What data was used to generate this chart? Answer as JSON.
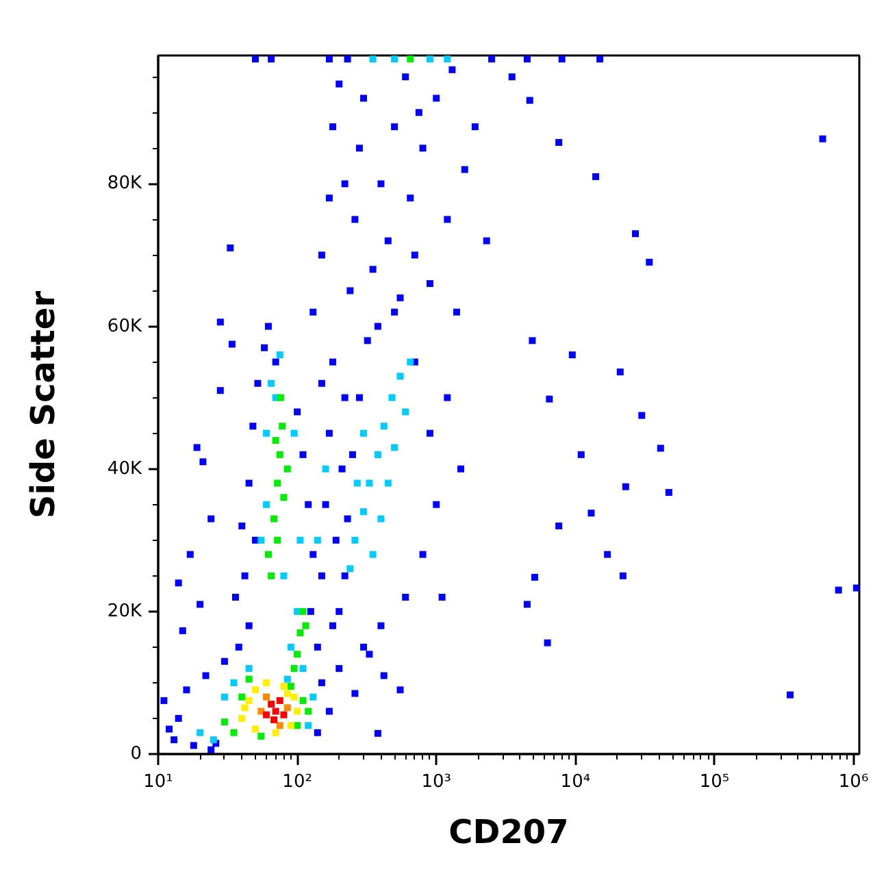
{
  "chart_data": {
    "type": "scatter",
    "xlabel": "CD207",
    "ylabel": "Side Scatter",
    "log": "x",
    "grid": false,
    "marker": "square",
    "xlim": [
      10,
      1100000
    ],
    "ylim": [
      0,
      98000
    ],
    "xticks": [
      {
        "value": 10,
        "label": "10¹"
      },
      {
        "value": 20,
        "label": null
      },
      {
        "value": 30,
        "label": null
      },
      {
        "value": 40,
        "label": null
      },
      {
        "value": 50,
        "label": null
      },
      {
        "value": 60,
        "label": null
      },
      {
        "value": 70,
        "label": null
      },
      {
        "value": 80,
        "label": null
      },
      {
        "value": 90,
        "label": null
      },
      {
        "value": 100,
        "label": "10²"
      },
      {
        "value": 200,
        "label": null
      },
      {
        "value": 300,
        "label": null
      },
      {
        "value": 400,
        "label": null
      },
      {
        "value": 500,
        "label": null
      },
      {
        "value": 600,
        "label": null
      },
      {
        "value": 700,
        "label": null
      },
      {
        "value": 800,
        "label": null
      },
      {
        "value": 900,
        "label": null
      },
      {
        "value": 1000,
        "label": "10³"
      },
      {
        "value": 2000,
        "label": null
      },
      {
        "value": 3000,
        "label": null
      },
      {
        "value": 4000,
        "label": null
      },
      {
        "value": 5000,
        "label": null
      },
      {
        "value": 6000,
        "label": null
      },
      {
        "value": 7000,
        "label": null
      },
      {
        "value": 8000,
        "label": null
      },
      {
        "value": 9000,
        "label": null
      },
      {
        "value": 10000,
        "label": "10⁴"
      },
      {
        "value": 20000,
        "label": null
      },
      {
        "value": 30000,
        "label": null
      },
      {
        "value": 40000,
        "label": null
      },
      {
        "value": 50000,
        "label": null
      },
      {
        "value": 60000,
        "label": null
      },
      {
        "value": 70000,
        "label": null
      },
      {
        "value": 80000,
        "label": null
      },
      {
        "value": 90000,
        "label": null
      },
      {
        "value": 100000,
        "label": "10⁵"
      },
      {
        "value": 200000,
        "label": null
      },
      {
        "value": 300000,
        "label": null
      },
      {
        "value": 400000,
        "label": null
      },
      {
        "value": 500000,
        "label": null
      },
      {
        "value": 600000,
        "label": null
      },
      {
        "value": 700000,
        "label": null
      },
      {
        "value": 800000,
        "label": null
      },
      {
        "value": 900000,
        "label": null
      },
      {
        "value": 1000000,
        "label": "10⁶"
      }
    ],
    "yticks": [
      0,
      {
        "value": 5000,
        "label": null
      },
      {
        "value": 10000,
        "label": null
      },
      {
        "value": 15000,
        "label": null
      },
      {
        "value": 20000,
        "label": "20K"
      },
      {
        "value": 25000,
        "label": null
      },
      {
        "value": 30000,
        "label": null
      },
      {
        "value": 35000,
        "label": null
      },
      {
        "value": 40000,
        "label": "40K"
      },
      {
        "value": 45000,
        "label": null
      },
      {
        "value": 50000,
        "label": null
      },
      {
        "value": 55000,
        "label": null
      },
      {
        "value": 60000,
        "label": "60K"
      },
      {
        "value": 65000,
        "label": null
      },
      {
        "value": 70000,
        "label": null
      },
      {
        "value": 75000,
        "label": null
      },
      {
        "value": 80000,
        "label": "80K"
      },
      {
        "value": 85000,
        "label": null
      },
      {
        "value": 90000,
        "label": null
      },
      {
        "value": 95000,
        "label": null
      }
    ],
    "series": [
      {
        "color": "#0000ff",
        "x": [
          11,
          12,
          13,
          14,
          16,
          18,
          22,
          24,
          26,
          30,
          140,
          150,
          170,
          200,
          260,
          330,
          380,
          420,
          550,
          33,
          28,
          34,
          28,
          19,
          21,
          14,
          15,
          17,
          24,
          20,
          38,
          42,
          40,
          45,
          48,
          52,
          58,
          62,
          70,
          100,
          110,
          120,
          130,
          125,
          140,
          45,
          36,
          50,
          150,
          160,
          170,
          180,
          190,
          200,
          210,
          220,
          150,
          180,
          220,
          230,
          250,
          280,
          320,
          500,
          700,
          900,
          1000,
          800,
          600,
          400,
          300,
          1200,
          1500,
          1100,
          130,
          150,
          170,
          180,
          200,
          240,
          260,
          280,
          300,
          350,
          400,
          450,
          500,
          550,
          600,
          650,
          700,
          800,
          900,
          1000,
          1200,
          1400,
          1600,
          1900,
          2300,
          220,
          380,
          750,
          1300,
          600000,
          7600,
          14000,
          27000,
          34000,
          4700,
          3500,
          4900,
          9500,
          21000,
          30000,
          41000,
          47000,
          23000,
          17000,
          22000,
          6300,
          350000,
          780000,
          1050000,
          13000,
          7600,
          4500,
          5100,
          11000,
          6500,
          50,
          65,
          170,
          230,
          2500,
          4500,
          8000,
          15000
        ],
        "values": [
          7500,
          3500,
          2000,
          5000,
          9000,
          1200,
          11000,
          600,
          1500,
          13000,
          3000,
          10000,
          6000,
          12000,
          8500,
          14000,
          2900,
          11000,
          9000,
          71000,
          60600,
          57500,
          51000,
          43000,
          41000,
          24000,
          17300,
          28000,
          33000,
          21000,
          15000,
          25000,
          32000,
          38000,
          46000,
          52000,
          57000,
          60000,
          55000,
          48000,
          42000,
          35000,
          28000,
          20000,
          15000,
          18000,
          22000,
          30000,
          25000,
          35000,
          45000,
          55000,
          30000,
          20000,
          40000,
          50000,
          52000,
          18000,
          25000,
          33000,
          42000,
          50000,
          58000,
          62000,
          55000,
          45000,
          35000,
          28000,
          22000,
          18000,
          15000,
          50000,
          40000,
          22000,
          62000,
          70000,
          78000,
          88000,
          94000,
          65000,
          75000,
          85000,
          92000,
          68000,
          80000,
          72000,
          88000,
          64000,
          95000,
          78000,
          70000,
          85000,
          66000,
          92000,
          75000,
          62000,
          82000,
          88000,
          72000,
          80000,
          60000,
          90000,
          96000,
          86300,
          85800,
          81000,
          73000,
          69000,
          91700,
          95000,
          58000,
          56000,
          53600,
          47500,
          42900,
          36700,
          37500,
          28000,
          25000,
          15600,
          8300,
          23000,
          23300,
          33800,
          32000,
          21000,
          24800,
          42000,
          49800,
          97500,
          97500,
          97500,
          97500,
          97500,
          97500,
          97500,
          97500
        ]
      },
      {
        "color": "#00ccff",
        "x": [
          55,
          60,
          65,
          70,
          80,
          90,
          100,
          105,
          95,
          60,
          75,
          110,
          85,
          20,
          25,
          30,
          35,
          120,
          130,
          45,
          240,
          260,
          300,
          330,
          380,
          420,
          480,
          550,
          650,
          300,
          450,
          350,
          500,
          600,
          270,
          400,
          160,
          140,
          350,
          500,
          900,
          1200
        ],
        "values": [
          30000,
          45000,
          52000,
          50000,
          25000,
          15000,
          20000,
          30000,
          45000,
          35000,
          56000,
          12000,
          10500,
          3000,
          2000,
          8000,
          10000,
          4000,
          8000,
          12000,
          26000,
          30000,
          34000,
          38000,
          42000,
          46000,
          50000,
          53000,
          55000,
          45000,
          38000,
          28000,
          43000,
          48000,
          38000,
          33000,
          40000,
          30000,
          97500,
          97500,
          97500,
          97500
        ]
      },
      {
        "color": "#00ee00",
        "x": [
          62,
          68,
          72,
          75,
          78,
          70,
          80,
          65,
          85,
          76,
          72,
          100,
          105,
          110,
          95,
          115,
          30,
          35,
          40,
          45,
          100,
          110,
          90,
          55,
          120,
          650
        ],
        "values": [
          28000,
          33000,
          38000,
          42000,
          46000,
          44000,
          36000,
          25000,
          40000,
          50000,
          30000,
          14000,
          17000,
          20000,
          12000,
          18000,
          4500,
          3000,
          8000,
          10500,
          4000,
          7500,
          9500,
          2500,
          6000,
          97500
        ]
      },
      {
        "color": "#ffee00",
        "x": [
          40,
          45,
          50,
          60,
          80,
          95,
          100,
          90,
          70,
          50,
          42,
          85
        ],
        "values": [
          5000,
          7500,
          9000,
          10000,
          9500,
          8000,
          6000,
          4000,
          3000,
          3500,
          6500,
          8500
        ]
      },
      {
        "color": "#ff8800",
        "x": [
          55,
          60,
          85,
          75
        ],
        "values": [
          6000,
          8000,
          6500,
          4000
        ]
      },
      {
        "color": "#ff0000",
        "x": [
          60,
          65,
          70,
          75,
          80,
          68
        ],
        "values": [
          5500,
          7000,
          6000,
          7500,
          5500,
          4800
        ]
      }
    ]
  }
}
